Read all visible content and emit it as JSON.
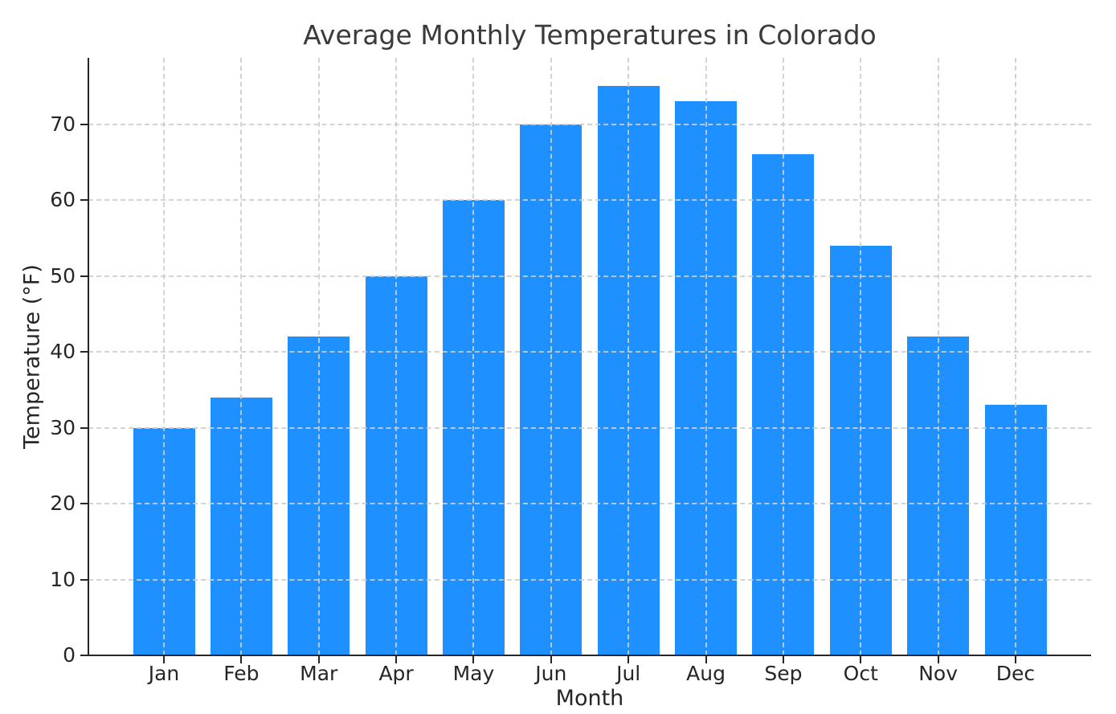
{
  "chart_data": {
    "type": "bar",
    "title": "Average Monthly Temperatures in Colorado",
    "xlabel": "Month",
    "ylabel": "Temperature (°F)",
    "categories": [
      "Jan",
      "Feb",
      "Mar",
      "Apr",
      "May",
      "Jun",
      "Jul",
      "Aug",
      "Sep",
      "Oct",
      "Nov",
      "Dec"
    ],
    "values": [
      30,
      34,
      42,
      50,
      60,
      70,
      75,
      73,
      66,
      54,
      42,
      33
    ],
    "yticks": [
      0,
      10,
      20,
      30,
      40,
      50,
      60,
      70
    ],
    "ylim": [
      0,
      78.75
    ],
    "grid": "dashed, drawn above bars",
    "legend": "none",
    "bar_color": "#1E90FF",
    "background_color": "#FFFFFF",
    "grid_color": "#CDCDCD",
    "spine_color": "#262626",
    "text_color": "#262626"
  }
}
